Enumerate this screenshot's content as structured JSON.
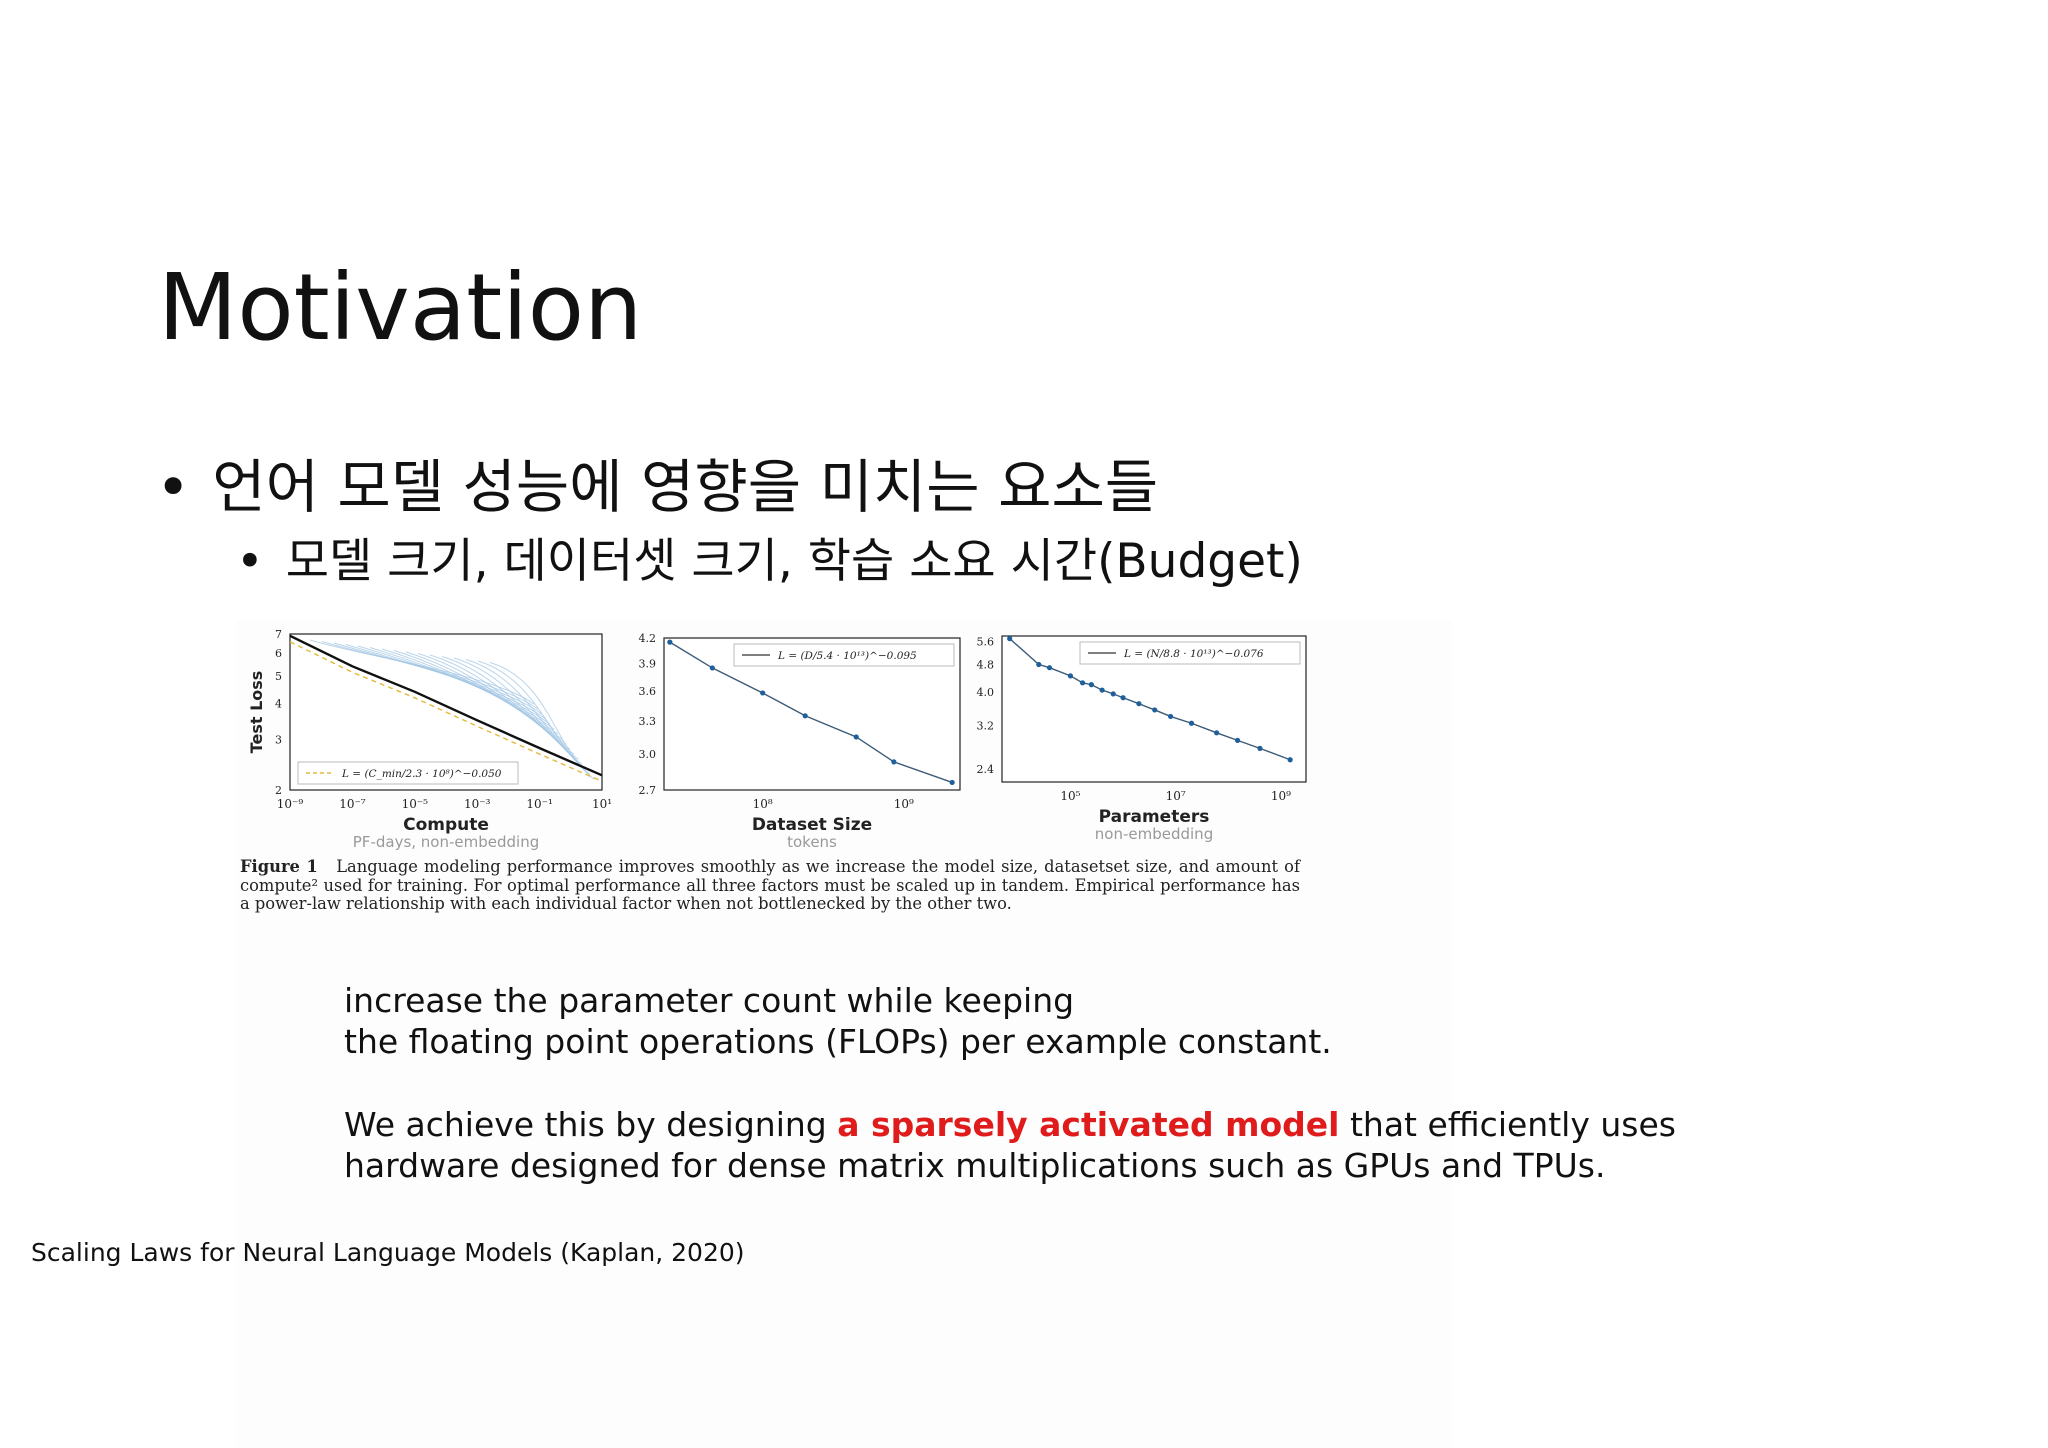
{
  "slide": {
    "title": "Motivation",
    "bullet_level1": "언어 모델 성능에 영향을 미치는 요소들",
    "bullet_level2": "모델 크기, 데이터셋 크기, 학습 소요 시간(Budget)",
    "bullet_symbol": "•"
  },
  "figure": {
    "caption_label": "Figure 1",
    "caption_text": "Language modeling performance improves smoothly as we increase the model size, datasetset size, and amount of compute² used for training. For optimal performance all three factors must be scaled up in tandem. Empirical performance has a power-law relationship with each individual factor when not bottlenecked by the other two."
  },
  "chart_data": [
    {
      "type": "line",
      "xlabel": "Compute",
      "xsublabel": "PF-days, non-embedding",
      "ylabel": "Test Loss",
      "xscale": "log",
      "yscale": "log",
      "x_ticks": [
        "10⁻⁹",
        "10⁻⁷",
        "10⁻⁵",
        "10⁻³",
        "10⁻¹",
        "10¹"
      ],
      "y_ticks": [
        "2",
        "3",
        "4",
        "5",
        "6",
        "7"
      ],
      "xlim": [
        1e-09,
        10
      ],
      "ylim": [
        2,
        7
      ],
      "legend": "L = (C_min/2.3 · 10⁸)^−0.050",
      "legend_position": "bottom-left",
      "series": [
        {
          "name": "L = (C_min/2.3 · 10⁸)^−0.050",
          "x": [
            1e-09,
            1e-07,
            1e-05,
            0.001,
            0.1,
            10
          ],
          "y": [
            6.9,
            5.4,
            4.4,
            3.5,
            2.8,
            2.25
          ]
        }
      ]
    },
    {
      "type": "line",
      "xlabel": "Dataset Size",
      "xsublabel": "tokens",
      "xscale": "log",
      "yscale": "log",
      "x_ticks": [
        "10⁸",
        "10⁹"
      ],
      "y_ticks": [
        "2.7",
        "3.0",
        "3.3",
        "3.6",
        "3.9",
        "4.2"
      ],
      "xlim": [
        20000000.0,
        2500000000.0
      ],
      "ylim": [
        2.7,
        4.2
      ],
      "legend": "L = (D/5.4 · 10¹³)^−0.095",
      "legend_position": "top-right",
      "series": [
        {
          "name": "L = (D/5.4 · 10¹³)^−0.095",
          "x": [
            22000000.0,
            44000000.0,
            100000000.0,
            200000000.0,
            460000000.0,
            850000000.0,
            2200000000.0
          ],
          "y": [
            4.15,
            3.85,
            3.58,
            3.35,
            3.15,
            2.93,
            2.76
          ]
        }
      ]
    },
    {
      "type": "line",
      "xlabel": "Parameters",
      "xsublabel": "non-embedding",
      "xscale": "log",
      "yscale": "log",
      "x_ticks": [
        "10⁵",
        "10⁷",
        "10⁹"
      ],
      "y_ticks": [
        "2.4",
        "3.2",
        "4.0",
        "4.8",
        "5.6"
      ],
      "xlim": [
        5000.0,
        3000000000.0
      ],
      "ylim": [
        2.2,
        5.8
      ],
      "legend": "L = (N/8.8 · 10¹³)^−0.076",
      "legend_position": "top-right",
      "series": [
        {
          "name": "L = (N/8.8 · 10¹³)^−0.076",
          "x": [
            7000.0,
            25000.0,
            40000.0,
            100000.0,
            170000.0,
            250000.0,
            400000.0,
            650000.0,
            1000000.0,
            2000000.0,
            4000000.0,
            8000000.0,
            20000000.0,
            60000000.0,
            150000000.0,
            400000000.0,
            1500000000.0
          ],
          "y": [
            5.7,
            4.8,
            4.7,
            4.45,
            4.25,
            4.2,
            4.05,
            3.95,
            3.85,
            3.7,
            3.55,
            3.4,
            3.25,
            3.05,
            2.9,
            2.75,
            2.55
          ]
        }
      ]
    }
  ],
  "paragraphs": {
    "p1_line1": "increase the parameter count while keeping",
    "p1_line2": "the floating point operations (FLOPs) per example constant.",
    "p2_line1_before": "We achieve this by designing ",
    "p2_line1_highlight": "a sparsely activated model",
    "p2_line1_after": " that efficiently uses",
    "p2_line2": "hardware designed for dense matrix multiplications such as GPUs and TPUs.",
    "highlight_color": "#e01b1b"
  },
  "citation": "Scaling Laws for Neural Language Models (Kaplan, 2020)"
}
